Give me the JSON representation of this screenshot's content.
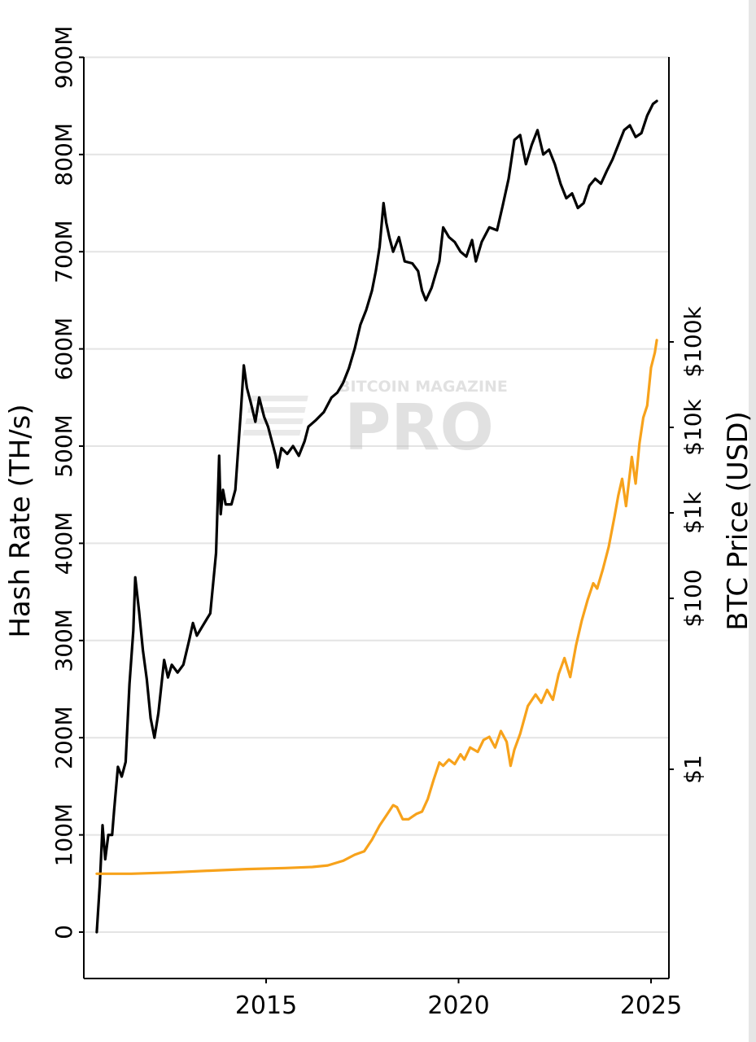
{
  "watermark": {
    "top": "BITCOIN MAGAZINE",
    "main": "PRO"
  },
  "chart_data": {
    "type": "line",
    "orientation": "rotated-90-clockwise",
    "xlabel": "",
    "x_ticks": [
      "2015",
      "2020",
      "2025"
    ],
    "x_tick_values": [
      2015,
      2020,
      2025
    ],
    "xlim": [
      2010.5,
      2025.4
    ],
    "left_axis": {
      "label": "Hash Rate (TH/s)",
      "ticks": [
        "0",
        "100M",
        "200M",
        "300M",
        "400M",
        "500M",
        "600M",
        "700M",
        "800M",
        "900M"
      ],
      "tick_values": [
        0,
        100,
        200,
        300,
        400,
        500,
        600,
        700,
        800,
        900
      ],
      "unit": "M TH/s",
      "ylim": [
        -50,
        900
      ]
    },
    "right_axis": {
      "label": "BTC Price (USD)",
      "scale": "log",
      "ticks": [
        "$1",
        "$100",
        "$1k",
        "$10k",
        "$100k"
      ],
      "tick_values": [
        1,
        100,
        1000,
        10000,
        100000
      ]
    },
    "grid": true,
    "series": [
      {
        "color": "#000000",
        "axis": "left",
        "points": [
          [
            2010.6,
            0
          ],
          [
            2010.68,
            50
          ],
          [
            2010.75,
            110
          ],
          [
            2010.82,
            75
          ],
          [
            2010.9,
            100
          ],
          [
            2011.0,
            100
          ],
          [
            2011.05,
            125
          ],
          [
            2011.15,
            170
          ],
          [
            2011.25,
            160
          ],
          [
            2011.35,
            175
          ],
          [
            2011.45,
            255
          ],
          [
            2011.55,
            310
          ],
          [
            2011.6,
            365
          ],
          [
            2011.7,
            330
          ],
          [
            2011.8,
            290
          ],
          [
            2011.9,
            260
          ],
          [
            2012.0,
            220
          ],
          [
            2012.1,
            200
          ],
          [
            2012.2,
            225
          ],
          [
            2012.35,
            280
          ],
          [
            2012.45,
            262
          ],
          [
            2012.55,
            275
          ],
          [
            2012.7,
            267
          ],
          [
            2012.85,
            275
          ],
          [
            2013.0,
            300
          ],
          [
            2013.1,
            318
          ],
          [
            2013.2,
            305
          ],
          [
            2013.35,
            315
          ],
          [
            2013.55,
            328
          ],
          [
            2013.7,
            390
          ],
          [
            2013.78,
            490
          ],
          [
            2013.82,
            430
          ],
          [
            2013.88,
            455
          ],
          [
            2013.95,
            440
          ],
          [
            2014.1,
            440
          ],
          [
            2014.2,
            455
          ],
          [
            2014.35,
            540
          ],
          [
            2014.42,
            583
          ],
          [
            2014.5,
            560
          ],
          [
            2014.6,
            545
          ],
          [
            2014.72,
            525
          ],
          [
            2014.82,
            550
          ],
          [
            2014.95,
            530
          ],
          [
            2015.05,
            520
          ],
          [
            2015.15,
            505
          ],
          [
            2015.25,
            490
          ],
          [
            2015.3,
            478
          ],
          [
            2015.4,
            498
          ],
          [
            2015.55,
            492
          ],
          [
            2015.7,
            500
          ],
          [
            2015.85,
            490
          ],
          [
            2016.0,
            505
          ],
          [
            2016.1,
            520
          ],
          [
            2016.3,
            527
          ],
          [
            2016.5,
            535
          ],
          [
            2016.7,
            550
          ],
          [
            2016.85,
            555
          ],
          [
            2017.0,
            565
          ],
          [
            2017.15,
            580
          ],
          [
            2017.3,
            600
          ],
          [
            2017.45,
            625
          ],
          [
            2017.6,
            640
          ],
          [
            2017.75,
            660
          ],
          [
            2017.85,
            680
          ],
          [
            2017.95,
            705
          ],
          [
            2018.05,
            750
          ],
          [
            2018.12,
            730
          ],
          [
            2018.2,
            715
          ],
          [
            2018.3,
            700
          ],
          [
            2018.45,
            715
          ],
          [
            2018.6,
            690
          ],
          [
            2018.8,
            688
          ],
          [
            2018.95,
            680
          ],
          [
            2019.05,
            660
          ],
          [
            2019.15,
            650
          ],
          [
            2019.3,
            663
          ],
          [
            2019.5,
            690
          ],
          [
            2019.6,
            725
          ],
          [
            2019.75,
            715
          ],
          [
            2019.9,
            710
          ],
          [
            2020.05,
            700
          ],
          [
            2020.2,
            695
          ],
          [
            2020.35,
            712
          ],
          [
            2020.45,
            690
          ],
          [
            2020.6,
            710
          ],
          [
            2020.8,
            725
          ],
          [
            2021.0,
            722
          ],
          [
            2021.15,
            748
          ],
          [
            2021.3,
            775
          ],
          [
            2021.45,
            815
          ],
          [
            2021.6,
            820
          ],
          [
            2021.75,
            790
          ],
          [
            2021.9,
            810
          ],
          [
            2022.05,
            825
          ],
          [
            2022.2,
            800
          ],
          [
            2022.35,
            805
          ],
          [
            2022.5,
            790
          ],
          [
            2022.65,
            770
          ],
          [
            2022.8,
            755
          ],
          [
            2022.95,
            760
          ],
          [
            2023.1,
            745
          ],
          [
            2023.25,
            750
          ],
          [
            2023.4,
            768
          ],
          [
            2023.55,
            775
          ],
          [
            2023.7,
            770
          ],
          [
            2023.85,
            783
          ],
          [
            2024.0,
            795
          ],
          [
            2024.15,
            810
          ],
          [
            2024.3,
            825
          ],
          [
            2024.45,
            830
          ],
          [
            2024.6,
            818
          ],
          [
            2024.75,
            822
          ],
          [
            2024.9,
            840
          ],
          [
            2025.05,
            852
          ],
          [
            2025.15,
            855
          ]
        ]
      },
      {
        "color": "#f7a21b",
        "axis": "right",
        "points": [
          [
            2010.6,
            0.06
          ],
          [
            2011.5,
            0.06
          ],
          [
            2012.5,
            0.062
          ],
          [
            2013.5,
            0.065
          ],
          [
            2014.5,
            0.068
          ],
          [
            2015.5,
            0.07
          ],
          [
            2016.2,
            0.072
          ],
          [
            2016.6,
            0.075
          ],
          [
            2017.0,
            0.085
          ],
          [
            2017.3,
            0.1
          ],
          [
            2017.55,
            0.11
          ],
          [
            2017.75,
            0.15
          ],
          [
            2017.95,
            0.22
          ],
          [
            2018.15,
            0.3
          ],
          [
            2018.3,
            0.38
          ],
          [
            2018.4,
            0.36
          ],
          [
            2018.55,
            0.26
          ],
          [
            2018.7,
            0.26
          ],
          [
            2018.9,
            0.3
          ],
          [
            2019.05,
            0.32
          ],
          [
            2019.2,
            0.45
          ],
          [
            2019.35,
            0.75
          ],
          [
            2019.5,
            1.2
          ],
          [
            2019.6,
            1.1
          ],
          [
            2019.75,
            1.3
          ],
          [
            2019.9,
            1.15
          ],
          [
            2020.05,
            1.5
          ],
          [
            2020.15,
            1.3
          ],
          [
            2020.3,
            1.8
          ],
          [
            2020.5,
            1.6
          ],
          [
            2020.65,
            2.2
          ],
          [
            2020.8,
            2.4
          ],
          [
            2020.95,
            1.8
          ],
          [
            2021.1,
            2.8
          ],
          [
            2021.25,
            2.1
          ],
          [
            2021.35,
            1.1
          ],
          [
            2021.45,
            1.7
          ],
          [
            2021.6,
            2.6
          ],
          [
            2021.8,
            5.5
          ],
          [
            2022.0,
            7.5
          ],
          [
            2022.15,
            6.0
          ],
          [
            2022.3,
            8.5
          ],
          [
            2022.45,
            6.5
          ],
          [
            2022.6,
            13
          ],
          [
            2022.75,
            20
          ],
          [
            2022.9,
            12
          ],
          [
            2023.05,
            28
          ],
          [
            2023.2,
            55
          ],
          [
            2023.35,
            95
          ],
          [
            2023.5,
            150
          ],
          [
            2023.6,
            130
          ],
          [
            2023.75,
            220
          ],
          [
            2023.9,
            400
          ],
          [
            2024.05,
            900
          ],
          [
            2024.15,
            1600
          ],
          [
            2024.25,
            2500
          ],
          [
            2024.35,
            1200
          ],
          [
            2024.5,
            4500
          ],
          [
            2024.6,
            2200
          ],
          [
            2024.7,
            6500
          ],
          [
            2024.8,
            13000
          ],
          [
            2024.9,
            18000
          ],
          [
            2025.0,
            50000
          ],
          [
            2025.1,
            75000
          ],
          [
            2025.15,
            105000
          ]
        ]
      }
    ]
  }
}
